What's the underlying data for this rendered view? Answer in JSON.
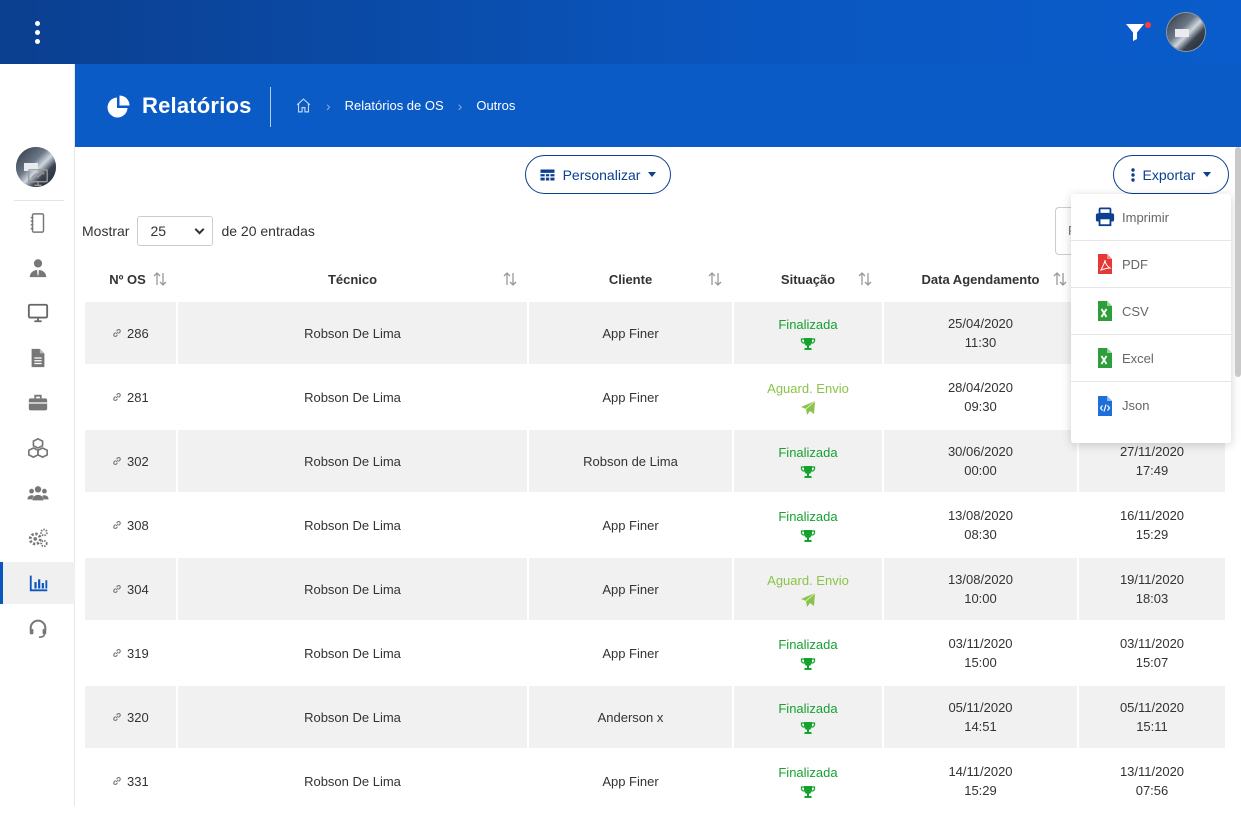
{
  "topbar": {
    "menu_icon": "vertical-dots-icon",
    "filter_icon": "filter-icon",
    "filter_badge_color": "#ff3b3b"
  },
  "sidebar": {
    "items": [
      {
        "name": "dashboard",
        "icon": "monitor-chart-icon"
      },
      {
        "name": "notebook",
        "icon": "notebook-icon"
      },
      {
        "name": "users",
        "icon": "user-tie-icon"
      },
      {
        "name": "desktop",
        "icon": "desktop-icon"
      },
      {
        "name": "documents",
        "icon": "file-icon"
      },
      {
        "name": "briefcase",
        "icon": "briefcase-icon"
      },
      {
        "name": "products",
        "icon": "cubes-icon"
      },
      {
        "name": "teams",
        "icon": "users-icon"
      },
      {
        "name": "settings",
        "icon": "cogs-icon"
      },
      {
        "name": "reports",
        "icon": "bar-chart-icon",
        "active": true
      },
      {
        "name": "support",
        "icon": "headset-icon"
      }
    ]
  },
  "header": {
    "title": "Relatórios",
    "title_icon": "pie-chart-icon",
    "breadcrumb": [
      "Relatórios de OS",
      "Outros"
    ]
  },
  "toolbar": {
    "customize_label": "Personalizar",
    "export_label": "Exportar"
  },
  "entries": {
    "show_label": "Mostrar",
    "page_size": "25",
    "suffix": "de 20 entradas",
    "search_fragment": "F"
  },
  "table": {
    "columns": [
      "Nº OS",
      "Técnico",
      "Cliente",
      "Situação",
      "Data Agendamento",
      ""
    ],
    "rows": [
      {
        "os": "286",
        "tecnico": "Robson De Lima",
        "cliente": "App Finer",
        "situacao": "Finalizada",
        "status": "fin",
        "agendamento": [
          "25/04/2020",
          "11:30"
        ],
        "data2": [
          "",
          ""
        ]
      },
      {
        "os": "281",
        "tecnico": "Robson De Lima",
        "cliente": "App Finer",
        "situacao": "Aguard. Envio",
        "status": "ag",
        "agendamento": [
          "28/04/2020",
          "09:30"
        ],
        "data2": [
          "",
          ""
        ]
      },
      {
        "os": "302",
        "tecnico": "Robson De Lima",
        "cliente": "Robson de Lima",
        "situacao": "Finalizada",
        "status": "fin",
        "agendamento": [
          "30/06/2020",
          "00:00"
        ],
        "data2": [
          "27/11/2020",
          "17:49"
        ]
      },
      {
        "os": "308",
        "tecnico": "Robson De Lima",
        "cliente": "App Finer",
        "situacao": "Finalizada",
        "status": "fin",
        "agendamento": [
          "13/08/2020",
          "08:30"
        ],
        "data2": [
          "16/11/2020",
          "15:29"
        ]
      },
      {
        "os": "304",
        "tecnico": "Robson De Lima",
        "cliente": "App Finer",
        "situacao": "Aguard. Envio",
        "status": "ag",
        "agendamento": [
          "13/08/2020",
          "10:00"
        ],
        "data2": [
          "19/11/2020",
          "18:03"
        ]
      },
      {
        "os": "319",
        "tecnico": "Robson De Lima",
        "cliente": "App Finer",
        "situacao": "Finalizada",
        "status": "fin",
        "agendamento": [
          "03/11/2020",
          "15:00"
        ],
        "data2": [
          "03/11/2020",
          "15:07"
        ]
      },
      {
        "os": "320",
        "tecnico": "Robson De Lima",
        "cliente": "Anderson x",
        "situacao": "Finalizada",
        "status": "fin",
        "agendamento": [
          "05/11/2020",
          "14:51"
        ],
        "data2": [
          "05/11/2020",
          "15:11"
        ]
      },
      {
        "os": "331",
        "tecnico": "Robson De Lima",
        "cliente": "App Finer",
        "situacao": "Finalizada",
        "status": "fin",
        "agendamento": [
          "14/11/2020",
          "15:29"
        ],
        "data2": [
          "13/11/2020",
          "07:56"
        ]
      }
    ]
  },
  "export_menu": {
    "items": [
      {
        "label": "Imprimir",
        "icon": "printer-icon",
        "color": "#0b3f8f"
      },
      {
        "label": "PDF",
        "icon": "pdf-file-icon",
        "color": "#e53935"
      },
      {
        "label": "CSV",
        "icon": "csv-file-icon",
        "color": "#2e9e3a"
      },
      {
        "label": "Excel",
        "icon": "excel-file-icon",
        "color": "#2e9e3a"
      },
      {
        "label": "Json",
        "icon": "json-file-icon",
        "color": "#1e6fd9"
      }
    ]
  },
  "colors": {
    "primary": "#0a5bc6",
    "dark": "#0b3f8f",
    "finalizada": "#16a22e",
    "aguard": "#8bc34a"
  }
}
